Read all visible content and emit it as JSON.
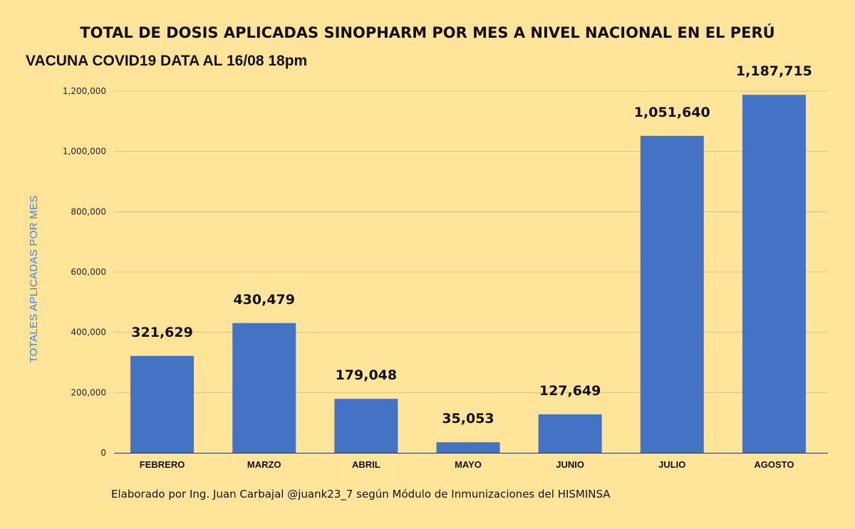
{
  "chart_data": {
    "type": "bar",
    "title": "TOTAL DE DOSIS APLICADAS SINOPHARM POR MES A NIVEL NACIONAL EN EL PERÚ",
    "subtitle": "VACUNA COVID19 DATA AL 16/08  18pm",
    "xlabel": "",
    "ylabel": "TOTALES APLICADAS POR MES",
    "categories": [
      "FEBRERO",
      "MARZO",
      "ABRIL",
      "MAYO",
      "JUNIO",
      "JULIO",
      "AGOSTO"
    ],
    "values": [
      321629,
      430479,
      179048,
      35053,
      127649,
      1051640,
      1187715
    ],
    "value_labels": [
      "321,629",
      "430,479",
      "179,048",
      "35,053",
      "127,649",
      "1,051,640",
      "1,187,715"
    ],
    "yticks": [
      0,
      200000,
      400000,
      600000,
      800000,
      1000000,
      1200000
    ],
    "ytick_labels": [
      "0",
      "200,000",
      "400,000",
      "600,000",
      "800,000",
      "1,000,000",
      "1,200,000"
    ],
    "ylim": [
      0,
      1200000
    ],
    "grid": true,
    "legend": "none",
    "bar_color": "#4472c4"
  },
  "footer": "Elaborado por Ing. Juan Carbajal @juank23_7 según Módulo de Inmunizaciones del HISMINSA"
}
